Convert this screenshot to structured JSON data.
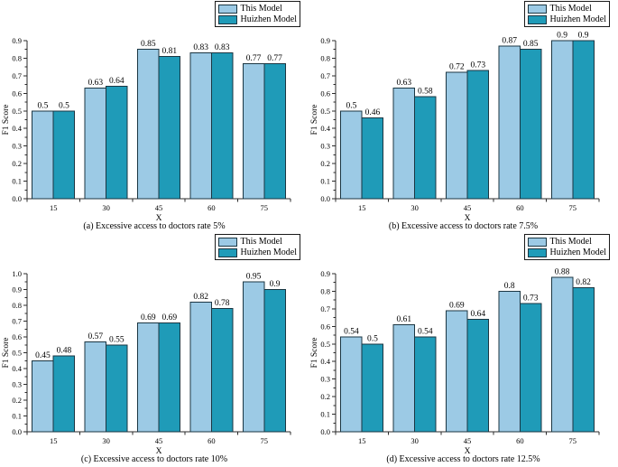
{
  "legend": {
    "items": [
      {
        "label": "This Model"
      },
      {
        "label": "Huizhen Model"
      }
    ]
  },
  "colors": {
    "this_model": "#9CCAE5",
    "huizhen_model": "#1F9BB8",
    "bar_edge": "#1B3642",
    "axis": "#2b2b2b",
    "text": "#000000"
  },
  "chart_data": [
    {
      "type": "bar",
      "title": "",
      "caption": "(a) Excessive access to doctors rate 5%",
      "categories": [
        "15",
        "30",
        "45",
        "60",
        "75"
      ],
      "series": [
        {
          "name": "This Model",
          "values": [
            0.5,
            0.63,
            0.85,
            0.83,
            0.77
          ]
        },
        {
          "name": "Huizhen Model",
          "values": [
            0.5,
            0.64,
            0.81,
            0.83,
            0.77
          ]
        }
      ],
      "xlabel": "X",
      "ylabel": "F1 Score",
      "ylim": [
        0,
        0.9
      ],
      "ytick_step": 0.1,
      "grid": false,
      "legend_position": "top-right"
    },
    {
      "type": "bar",
      "title": "",
      "caption": "(b) Excessive access to doctors rate 7.5%",
      "categories": [
        "15",
        "30",
        "45",
        "60",
        "75"
      ],
      "series": [
        {
          "name": "This Model",
          "values": [
            0.5,
            0.63,
            0.72,
            0.87,
            0.9
          ]
        },
        {
          "name": "Huizhen Model",
          "values": [
            0.46,
            0.58,
            0.73,
            0.85,
            0.9
          ]
        }
      ],
      "xlabel": "X",
      "ylabel": "F1 Score",
      "ylim": [
        0,
        0.9
      ],
      "ytick_step": 0.1,
      "grid": false,
      "legend_position": "top-right"
    },
    {
      "type": "bar",
      "title": "",
      "caption": "(c) Excessive access to doctors rate 10%",
      "categories": [
        "15",
        "30",
        "45",
        "60",
        "75"
      ],
      "series": [
        {
          "name": "This Model",
          "values": [
            0.45,
            0.57,
            0.69,
            0.82,
            0.95
          ]
        },
        {
          "name": "Huizhen Model",
          "values": [
            0.48,
            0.55,
            0.69,
            0.78,
            0.9
          ]
        }
      ],
      "xlabel": "X",
      "ylabel": "F1 Score",
      "ylim": [
        0,
        1.0
      ],
      "ytick_step": 0.1,
      "grid": false,
      "legend_position": "top-right"
    },
    {
      "type": "bar",
      "title": "",
      "caption": "(d) Excessive access to doctors rate 12.5%",
      "categories": [
        "15",
        "30",
        "45",
        "60",
        "75"
      ],
      "series": [
        {
          "name": "This Model",
          "values": [
            0.54,
            0.61,
            0.69,
            0.8,
            0.88
          ]
        },
        {
          "name": "Huizhen Model",
          "values": [
            0.5,
            0.54,
            0.64,
            0.73,
            0.82
          ]
        }
      ],
      "xlabel": "X",
      "ylabel": "F1 Score",
      "ylim": [
        0,
        0.9
      ],
      "ytick_step": 0.1,
      "grid": false,
      "legend_position": "top-right"
    }
  ]
}
